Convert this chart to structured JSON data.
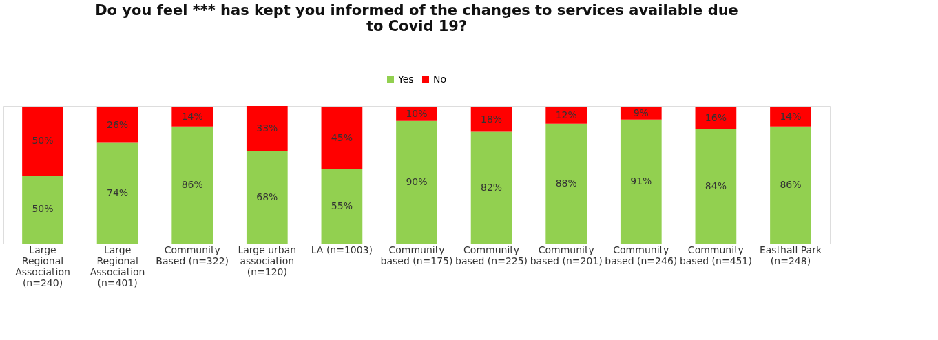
{
  "chart_data": {
    "type": "bar",
    "title": "Do you feel *** has kept you informed of the changes to services available due to Covid 19?",
    "categories": [
      "Large Regional Association (n=240)",
      "Large Regional Association (n=401)",
      "Community Based (n=322)",
      "Large urban association (n=120)",
      "LA (n=1003)",
      "Community based (n=175)",
      "Community based (n=225)",
      "Community based (n=201)",
      "Community based (n=246)",
      "Community based (n=451)",
      "Easthall Park (n=248)"
    ],
    "series": [
      {
        "name": "Yes",
        "color": "#92d050",
        "values": [
          50,
          74,
          86,
          68,
          55,
          90,
          82,
          88,
          91,
          84,
          86
        ],
        "value_labels": [
          "50%",
          "74%",
          "86%",
          "68%",
          "55%",
          "90%",
          "82%",
          "88%",
          "91%",
          "84%",
          "86%"
        ]
      },
      {
        "name": "No",
        "color": "#ff0000",
        "values": [
          50,
          26,
          14,
          33,
          45,
          10,
          18,
          12,
          9,
          16,
          14
        ],
        "value_labels": [
          "50%",
          "26%",
          "14%",
          "33%",
          "45%",
          "10%",
          "18%",
          "12%",
          "9%",
          "16%",
          "14%"
        ]
      }
    ],
    "stacked": true,
    "legend": "top",
    "grid": false,
    "tick_labels": "x"
  }
}
